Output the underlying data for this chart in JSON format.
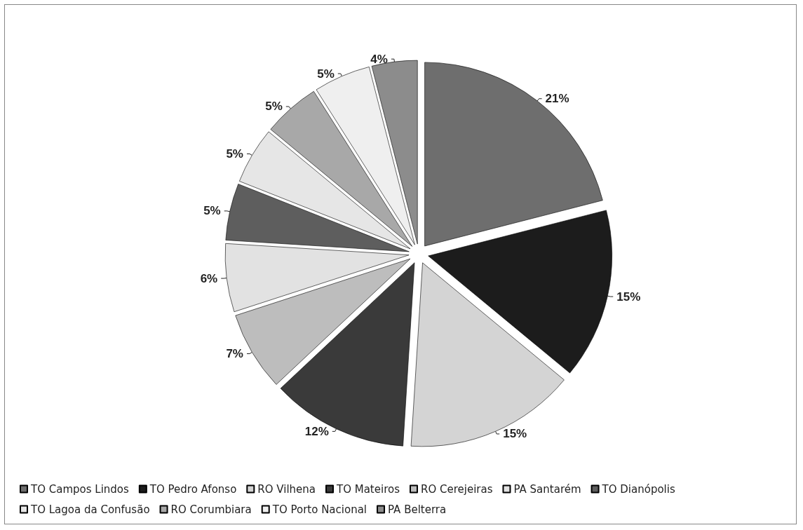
{
  "chart_data": {
    "type": "pie",
    "categories": [
      "TO Campos Lindos",
      "TO Pedro Afonso",
      "RO Vilhena",
      "TO Mateiros",
      "RO Cerejeiras",
      "PA Santarém",
      "TO Dianópolis",
      "TO Lagoa da Confusão",
      "RO Corumbiara",
      "TO Porto Nacional",
      "PA Belterra"
    ],
    "values": [
      21,
      15,
      15,
      12,
      7,
      6,
      5,
      5,
      5,
      5,
      4
    ],
    "colors": [
      "#6e6e6e",
      "#1c1c1c",
      "#d4d4d4",
      "#3a3a3a",
      "#bdbdbd",
      "#e2e2e2",
      "#5e5e5e",
      "#e6e6e6",
      "#a8a8a8",
      "#efefef",
      "#8c8c8c"
    ],
    "value_labels": [
      "21%",
      "15%",
      "15%",
      "12%",
      "7%",
      "6%",
      "5%",
      "5%",
      "5%",
      "5%",
      "4%"
    ],
    "legend": "bottom"
  }
}
